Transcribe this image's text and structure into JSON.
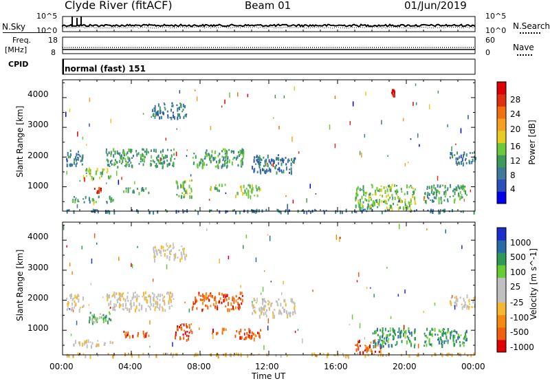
{
  "header": {
    "station": "Clyde River (fitACF)",
    "beam": "Beam 01",
    "date": "01/Jun/2019"
  },
  "noise_panel": {
    "left_label": "N.Sky",
    "right_label": "N.Search",
    "left_ticks": [
      "10^5",
      "10^0"
    ],
    "right_ticks": [
      "10^5",
      "10^0"
    ]
  },
  "freq_panel": {
    "left_label_line1": "Freq.",
    "left_label_line2": "[MHz]",
    "right_label": "Nave",
    "left_ticks": [
      "18",
      "8"
    ],
    "right_ticks": [
      "60",
      "0"
    ]
  },
  "cpid_panel": {
    "label": "CPID",
    "value": "normal (fast) 151"
  },
  "x_axis": {
    "label": "Time UT",
    "ticks": [
      "00:00",
      "04:00",
      "08:00",
      "12:00",
      "16:00",
      "20:00",
      "00:00"
    ]
  },
  "colors": {
    "power": [
      "#0000ee",
      "#2a4fb8",
      "#3f7a9c",
      "#3d9a5a",
      "#6cc83c",
      "#e8cc20",
      "#f5a020",
      "#f07010",
      "#e03010",
      "#dd0000"
    ],
    "velocity": [
      "#e00000",
      "#f06010",
      "#f58a10",
      "#f5b830",
      "#c0c0c0",
      "#c0c0c0",
      "#66cc33",
      "#2e9a55",
      "#2a6aa8",
      "#1a2ecc"
    ]
  },
  "chart_data": [
    {
      "type": "heatmap",
      "title": "",
      "xlabel": "",
      "ylabel": "Slant Range [km]",
      "xlim": [
        0,
        24
      ],
      "ylim": [
        180,
        4600
      ],
      "y_ticks": [
        "1000",
        "2000",
        "3000",
        "4000"
      ],
      "colorbar": {
        "label": "Power [dB]",
        "ticks": [
          "4",
          "8",
          "12",
          "16",
          "20",
          "24",
          "28"
        ],
        "range": [
          0,
          30
        ]
      },
      "features": [
        {
          "t0": 0.0,
          "t1": 24.0,
          "r0": 180,
          "r1": 260,
          "level": 2
        },
        {
          "t0": 0.2,
          "t1": 1.2,
          "r0": 1700,
          "r1": 2250,
          "level": 2
        },
        {
          "t0": 0.5,
          "t1": 3.0,
          "r0": 500,
          "r1": 700,
          "level": 3
        },
        {
          "t0": 1.3,
          "t1": 2.8,
          "r0": 1300,
          "r1": 1650,
          "level": 4
        },
        {
          "t0": 1.8,
          "t1": 2.2,
          "r0": 800,
          "r1": 1000,
          "level": 8
        },
        {
          "t0": 2.5,
          "t1": 6.5,
          "r0": 1700,
          "r1": 2300,
          "level": 3
        },
        {
          "t0": 3.5,
          "t1": 5.0,
          "r0": 800,
          "r1": 1000,
          "level": 3
        },
        {
          "t0": 5.2,
          "t1": 7.2,
          "r0": 3350,
          "r1": 3850,
          "level": 2
        },
        {
          "t0": 6.5,
          "t1": 7.5,
          "r0": 700,
          "r1": 1250,
          "level": 4
        },
        {
          "t0": 7.5,
          "t1": 10.5,
          "r0": 1700,
          "r1": 2300,
          "level": 3
        },
        {
          "t0": 8.5,
          "t1": 9.5,
          "r0": 900,
          "r1": 1100,
          "level": 4
        },
        {
          "t0": 10.0,
          "t1": 11.5,
          "r0": 700,
          "r1": 1100,
          "level": 4
        },
        {
          "t0": 11.0,
          "t1": 13.5,
          "r0": 1500,
          "r1": 2100,
          "level": 2
        },
        {
          "t0": 17.0,
          "t1": 20.5,
          "r0": 300,
          "r1": 1100,
          "level": 4
        },
        {
          "t0": 21.0,
          "t1": 23.5,
          "r0": 500,
          "r1": 1100,
          "level": 3
        },
        {
          "t0": 22.5,
          "t1": 24.0,
          "r0": 1800,
          "r1": 2200,
          "level": 2
        },
        {
          "t0": 19.1,
          "t1": 19.3,
          "r0": 4100,
          "r1": 4300,
          "level": 9
        }
      ]
    },
    {
      "type": "heatmap",
      "title": "",
      "xlabel": "Time UT",
      "ylabel": "Slant Range [km]",
      "xlim": [
        0,
        24
      ],
      "ylim": [
        180,
        4600
      ],
      "y_ticks": [
        "1000",
        "2000",
        "3000",
        "4000"
      ],
      "colorbar": {
        "label": "Velocity [m s^-1]",
        "ticks": [
          "1000",
          "500",
          "100",
          "25",
          "-25",
          "-100",
          "-500",
          "-1000"
        ],
        "range": [
          -1000,
          1000
        ]
      },
      "features": [
        {
          "t0": 0.0,
          "t1": 24.0,
          "r0": 180,
          "r1": 260,
          "level": 3
        },
        {
          "t0": 0.2,
          "t1": 1.2,
          "r0": 1700,
          "r1": 2250,
          "level": 4
        },
        {
          "t0": 0.5,
          "t1": 3.0,
          "r0": 500,
          "r1": 700,
          "level": 4
        },
        {
          "t0": 1.3,
          "t1": 2.8,
          "r0": 1300,
          "r1": 1650,
          "level": 6
        },
        {
          "t0": 2.5,
          "t1": 6.5,
          "r0": 1700,
          "r1": 2300,
          "level": 4
        },
        {
          "t0": 3.5,
          "t1": 5.0,
          "r0": 800,
          "r1": 1000,
          "level": 1
        },
        {
          "t0": 5.2,
          "t1": 7.2,
          "r0": 3350,
          "r1": 3850,
          "level": 4
        },
        {
          "t0": 6.5,
          "t1": 7.5,
          "r0": 700,
          "r1": 1250,
          "level": 1
        },
        {
          "t0": 7.5,
          "t1": 10.5,
          "r0": 1700,
          "r1": 2300,
          "level": 1
        },
        {
          "t0": 8.5,
          "t1": 9.5,
          "r0": 900,
          "r1": 1100,
          "level": 1
        },
        {
          "t0": 10.0,
          "t1": 11.5,
          "r0": 700,
          "r1": 1100,
          "level": 1
        },
        {
          "t0": 11.0,
          "t1": 13.5,
          "r0": 1500,
          "r1": 2100,
          "level": 4
        },
        {
          "t0": 17.0,
          "t1": 18.5,
          "r0": 300,
          "r1": 700,
          "level": 1
        },
        {
          "t0": 18.0,
          "t1": 20.5,
          "r0": 500,
          "r1": 1100,
          "level": 7
        },
        {
          "t0": 21.0,
          "t1": 23.5,
          "r0": 500,
          "r1": 1100,
          "level": 7
        },
        {
          "t0": 22.5,
          "t1": 24.0,
          "r0": 1800,
          "r1": 2200,
          "level": 4
        }
      ]
    }
  ]
}
